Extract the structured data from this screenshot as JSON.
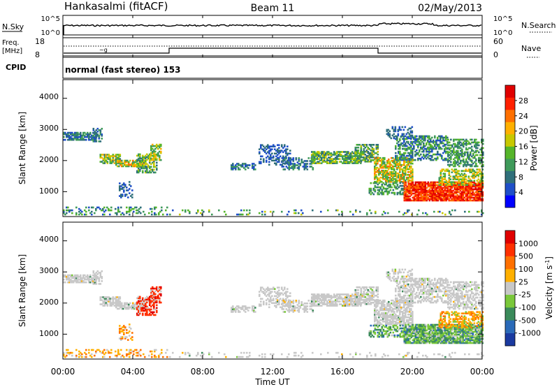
{
  "header": {
    "station": "Hankasalmi (fitACF)",
    "beam": "Beam 11",
    "date": "02/May/2013"
  },
  "noise_panel": {
    "left_label": "N.Sky",
    "right_label": "N.Search",
    "tick_top": "10^5",
    "tick_bottom": "10^0"
  },
  "freq_panel": {
    "left_label": "Freq.",
    "left_unit": "[MHz]",
    "right_label": "Nave",
    "left_ticks": [
      "18",
      "8"
    ],
    "right_ticks": [
      "60",
      "0"
    ]
  },
  "cpid": {
    "label": "CPID",
    "value": "normal (fast stereo) 153"
  },
  "time_axis": {
    "label": "Time UT",
    "ticks": [
      "00:00",
      "04:00",
      "08:00",
      "12:00",
      "16:00",
      "20:00",
      "00:00"
    ]
  },
  "chart_data": [
    {
      "type": "heatmap",
      "name": "Power",
      "ylabel": "Slant Range [km]",
      "xlabel": "Time UT",
      "ylim": [
        200,
        4600
      ],
      "yticks": [
        "1000",
        "2000",
        "3000",
        "4000"
      ],
      "colorbar_label": "Power [dB]",
      "colorbar_ticks": [
        "28",
        "24",
        "20",
        "16",
        "12",
        "8",
        "4"
      ],
      "colorbar_colors": [
        "#0000ff",
        "#1f4fc8",
        "#2f6f7a",
        "#3f9a5a",
        "#55b52a",
        "#c8c800",
        "#ffb000",
        "#ff7000",
        "#ff2000",
        "#e00000"
      ]
    },
    {
      "type": "heatmap",
      "name": "Velocity",
      "ylabel": "Slant Range [km]",
      "xlabel": "Time UT",
      "ylim": [
        200,
        4600
      ],
      "yticks": [
        "1000",
        "2000",
        "3000",
        "4000"
      ],
      "colorbar_label": "Velocity [m s",
      "colorbar_ticks": [
        "1000",
        "500",
        "100",
        "25",
        "-25",
        "-100",
        "-500",
        "-1000"
      ],
      "colorbar_colors": [
        "#1a3aa0",
        "#2a6ab8",
        "#3a8a5a",
        "#7ac83a",
        "#c8c8c8",
        "#ffb000",
        "#ff7000",
        "#ff3000",
        "#e00000"
      ]
    }
  ]
}
